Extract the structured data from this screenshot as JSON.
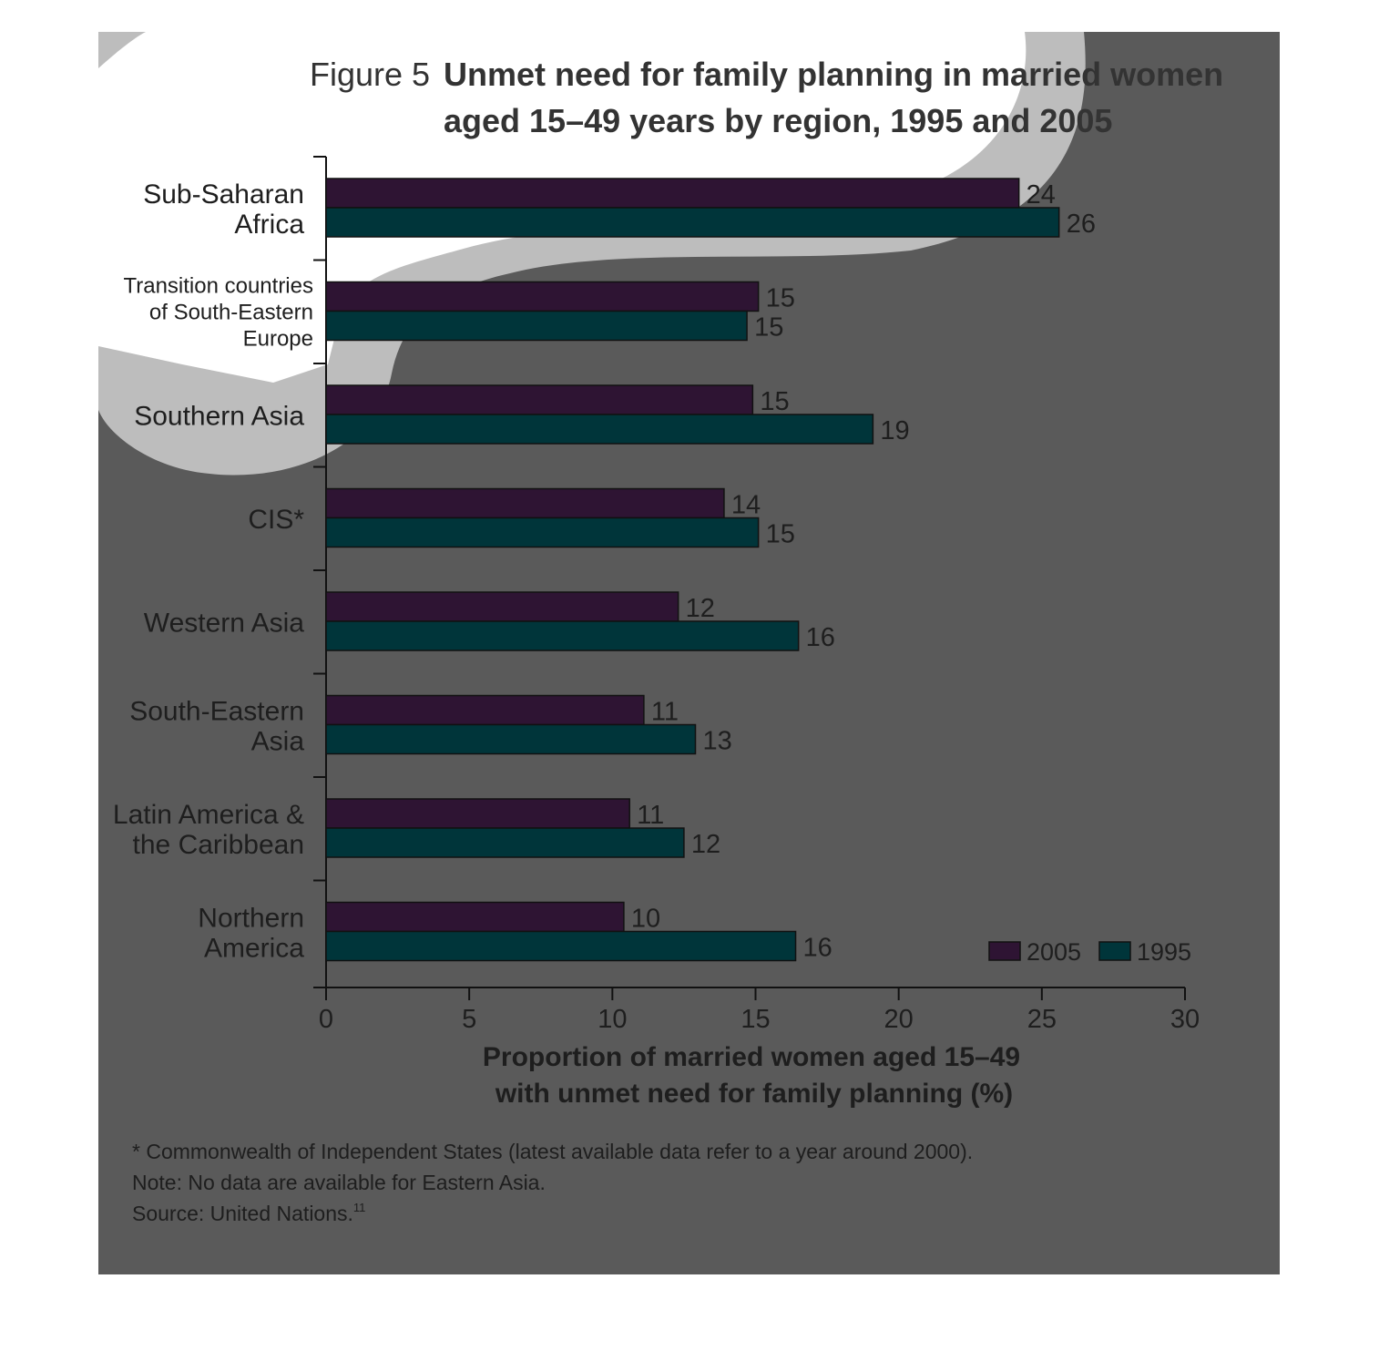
{
  "figure": {
    "label": "Figure 5",
    "title_line1": "Unmet need for family planning in married women",
    "title_line2": "aged 15–49 years by region, 1995 and 2005"
  },
  "footnotes": {
    "line1": "* Commonwealth of Independent States (latest available data refer to a year around 2000).",
    "line2": "Note: No data are available for Eastern Asia.",
    "line3": "Source: United Nations.",
    "superscript": "11"
  },
  "colors": {
    "background": "#5a5a5a",
    "series_2005": "#2e1433",
    "series_1995": "#00353a",
    "text": "#1e1e1e",
    "highlight_2005": "#b84dbd",
    "highlight_1995": "#00f6ff"
  },
  "chart_data": {
    "type": "bar",
    "orientation": "horizontal",
    "categories": [
      [
        "Sub-Saharan",
        "Africa"
      ],
      [
        "Transition countries",
        "of South-Eastern",
        "Europe"
      ],
      [
        "Southern Asia"
      ],
      [
        "CIS*"
      ],
      [
        "Western Asia"
      ],
      [
        "South-Eastern",
        "Asia"
      ],
      [
        "Latin America &",
        "the Caribbean"
      ],
      [
        "Northern",
        "America"
      ]
    ],
    "series": [
      {
        "name": "2005",
        "values": [
          24.2,
          15.1,
          14.9,
          13.9,
          12.3,
          11.1,
          10.6,
          10.4
        ],
        "labels": [
          "24",
          "15",
          "15",
          "14",
          "12",
          "11",
          "11",
          "10"
        ]
      },
      {
        "name": "1995",
        "values": [
          25.6,
          14.7,
          19.1,
          15.1,
          16.5,
          12.9,
          12.5,
          16.4
        ],
        "labels": [
          "26",
          "15",
          "19",
          "15",
          "16",
          "13",
          "12",
          "16"
        ]
      }
    ],
    "xlim": [
      0,
      30
    ],
    "xticks": [
      "0",
      "5",
      "10",
      "15",
      "20",
      "25",
      "30"
    ],
    "xlabel_line1": "Proportion of married women aged 15–49",
    "xlabel_line2": "with unmet need for family planning (%)",
    "legend": [
      "2005",
      "1995"
    ],
    "legend_position": "bottom-right",
    "grid": false
  }
}
